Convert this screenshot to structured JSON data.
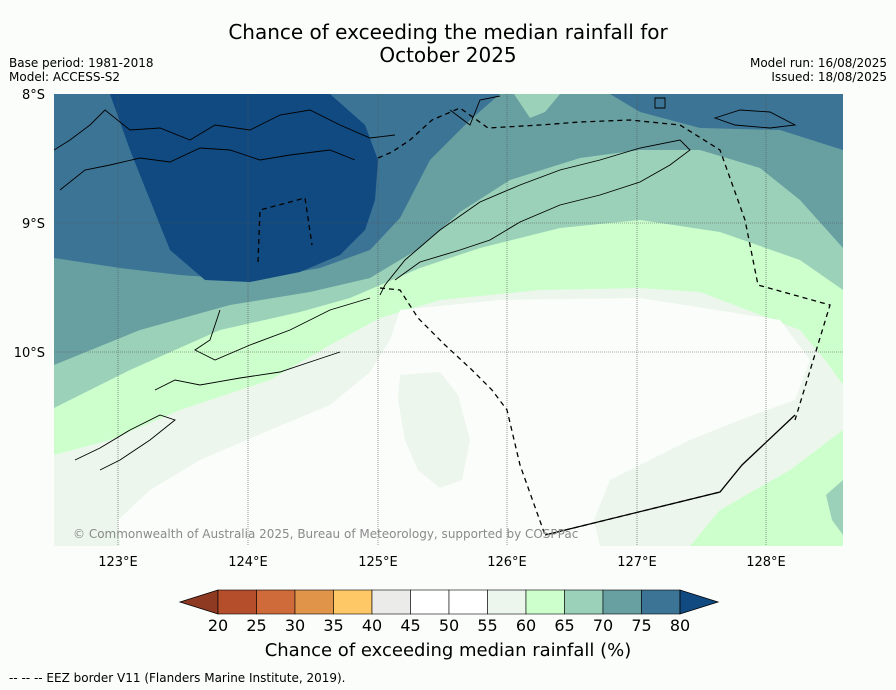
{
  "title": {
    "line1": "Chance of exceeding the median rainfall for",
    "line2": "October 2025"
  },
  "meta_left": {
    "base_period": "Base period: 1981-2018",
    "model": "Model: ACCESS-S2"
  },
  "meta_right": {
    "model_run": "Model run: 16/08/2025",
    "issued": "Issued: 18/08/2025"
  },
  "map": {
    "lat_labels": [
      "8°S",
      "9°S",
      "10°S"
    ],
    "lon_labels": [
      "123°E",
      "124°E",
      "125°E",
      "126°E",
      "127°E",
      "128°E"
    ],
    "copyright": "© Commonwealth of Australia 2025, Bureau of Meteorology, supported by COSPPac"
  },
  "colorbar": {
    "ticks": [
      "20",
      "25",
      "30",
      "35",
      "40",
      "45",
      "50",
      "55",
      "60",
      "65",
      "70",
      "75",
      "80"
    ],
    "colors": [
      "#8e3a22",
      "#b44e2b",
      "#cf6a3a",
      "#e0944a",
      "#fdc865",
      "#ebebe9",
      "#ffffff",
      "#ffffff",
      "#ecf6ec",
      "#ccffcc",
      "#9ad1b8",
      "#68a0a2",
      "#3c7496",
      "#104a80"
    ],
    "title": "Chance of exceeding median rainfall (%)"
  },
  "footnote": "--  --  -- EEZ border V11 (Flanders Marine Institute, 2019)."
}
